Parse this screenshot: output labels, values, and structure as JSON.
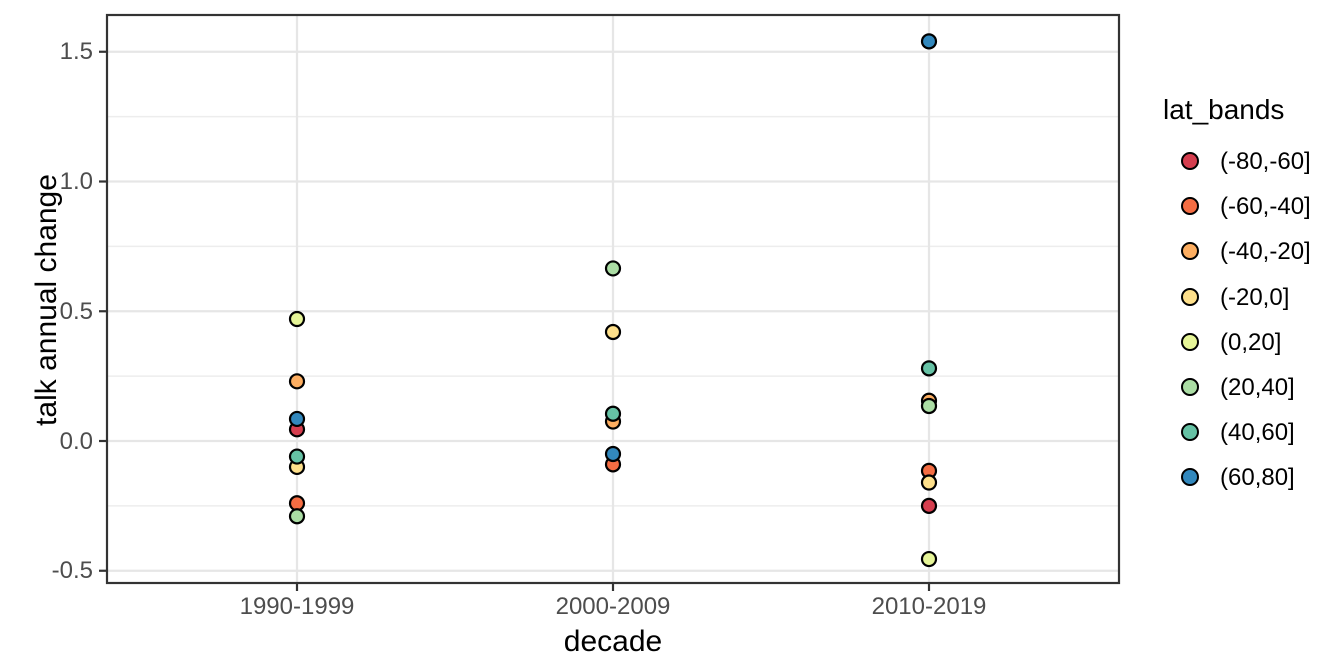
{
  "figure": {
    "xlabel": "decade",
    "ylabel": "talk annual change",
    "legend_title": "lat_bands"
  },
  "style": {
    "panel_background": "#ffffff",
    "panel_border_color": "#333333",
    "grid_major_color": "#e6e6e6",
    "grid_minor_color": "#ededed",
    "tick_color": "#333333",
    "tick_label_color": "#4d4d4d",
    "point_stroke_color": "#000000"
  },
  "chart_data": {
    "type": "scatter",
    "title": "",
    "xlabel": "decade",
    "ylabel": "talk annual change",
    "legend_title": "lat_bands",
    "legend_position": "right",
    "grid": true,
    "categories": [
      "1990-1999",
      "2000-2009",
      "2010-2019"
    ],
    "y_axis": {
      "ticks": [
        1.5,
        1.0,
        0.5,
        0.0,
        -0.5
      ],
      "tick_labels": [
        "1.5",
        "1.0",
        "0.5",
        "0.0",
        "-0.5"
      ],
      "minor_ticks": [
        1.25,
        0.75,
        0.25,
        -0.25
      ],
      "ylim": [
        -0.55,
        1.64
      ]
    },
    "series": [
      {
        "name": "(-80,-60]",
        "color": "#d53e4f",
        "points": [
          {
            "decade": "1990-1999",
            "value": 0.045
          },
          {
            "decade": "2010-2019",
            "value": -0.25
          }
        ]
      },
      {
        "name": "(-60,-40]",
        "color": "#f46d43",
        "points": [
          {
            "decade": "1990-1999",
            "value": -0.24
          },
          {
            "decade": "2000-2009",
            "value": -0.09
          },
          {
            "decade": "2010-2019",
            "value": -0.115
          }
        ]
      },
      {
        "name": "(-40,-20]",
        "color": "#fdae61",
        "points": [
          {
            "decade": "1990-1999",
            "value": 0.23
          },
          {
            "decade": "2000-2009",
            "value": 0.075
          },
          {
            "decade": "2010-2019",
            "value": 0.155
          }
        ]
      },
      {
        "name": "(-20,0]",
        "color": "#fee08b",
        "points": [
          {
            "decade": "1990-1999",
            "value": -0.1
          },
          {
            "decade": "2000-2009",
            "value": 0.42
          },
          {
            "decade": "2010-2019",
            "value": -0.16
          }
        ]
      },
      {
        "name": "(0,20]",
        "color": "#e6f598",
        "points": [
          {
            "decade": "1990-1999",
            "value": 0.47
          },
          {
            "decade": "2010-2019",
            "value": -0.455
          }
        ]
      },
      {
        "name": "(20,40]",
        "color": "#abdda4",
        "points": [
          {
            "decade": "1990-1999",
            "value": -0.29
          },
          {
            "decade": "2000-2009",
            "value": 0.665
          },
          {
            "decade": "2010-2019",
            "value": 0.135
          }
        ]
      },
      {
        "name": "(40,60]",
        "color": "#66c2a5",
        "points": [
          {
            "decade": "1990-1999",
            "value": -0.06
          },
          {
            "decade": "2000-2009",
            "value": 0.105
          },
          {
            "decade": "2010-2019",
            "value": 0.28
          }
        ]
      },
      {
        "name": "(60,80]",
        "color": "#3288bd",
        "points": [
          {
            "decade": "1990-1999",
            "value": 0.085
          },
          {
            "decade": "2000-2009",
            "value": -0.05
          },
          {
            "decade": "2010-2019",
            "value": 1.54
          }
        ]
      }
    ]
  }
}
